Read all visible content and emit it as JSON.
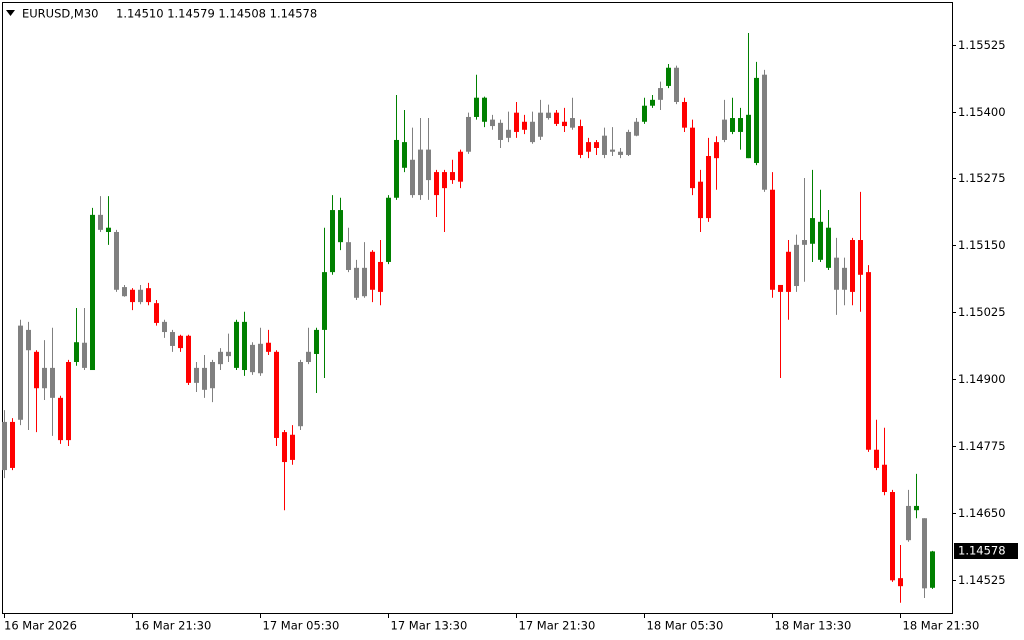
{
  "header": {
    "symbol": "EURUSD,M30",
    "ohlc": "1.14510 1.14579 1.14508 1.14578"
  },
  "chart_data": {
    "type": "candlestick",
    "categories": [
      "16 Mar 2026",
      null,
      null,
      null,
      null,
      null,
      null,
      null,
      null,
      null,
      null,
      null,
      null,
      null,
      null,
      null,
      "16 Mar 21:30",
      null,
      null,
      null,
      null,
      null,
      null,
      null,
      null,
      null,
      null,
      null,
      null,
      null,
      null,
      null,
      "17 Mar 05:30",
      null,
      null,
      null,
      null,
      null,
      null,
      null,
      null,
      null,
      null,
      null,
      null,
      null,
      null,
      null,
      "17 Mar 13:30",
      null,
      null,
      null,
      null,
      null,
      null,
      null,
      null,
      null,
      null,
      null,
      null,
      null,
      null,
      null,
      "17 Mar 21:30",
      null,
      null,
      null,
      null,
      null,
      null,
      null,
      null,
      null,
      null,
      null,
      null,
      null,
      null,
      null,
      "18 Mar 05:30",
      null,
      null,
      null,
      null,
      null,
      null,
      null,
      null,
      null,
      null,
      null,
      null,
      null,
      null,
      null,
      "18 Mar 13:30",
      null,
      null,
      null,
      null,
      null,
      null,
      null,
      null,
      null,
      null,
      null,
      null,
      null,
      null,
      null,
      "18 Mar 21:30",
      null,
      null,
      null,
      null
    ],
    "open": [
      1.1473,
      1.1482,
      1.14824,
      1.14954,
      1.14951,
      1.14883,
      1.14921,
      1.14865,
      1.14932,
      1.14932,
      1.14968,
      1.14917,
      1.15207,
      1.15175,
      1.15175,
      1.15072,
      1.15067,
      1.15044,
      1.1507,
      1.15042,
      1.15007,
      1.14988,
      1.14981,
      1.14981,
      1.14893,
      1.14921,
      1.14883,
      1.14928,
      1.14951,
      1.14921,
      1.14917,
      1.14964,
      1.14911,
      1.14968,
      1.14951,
      1.14801,
      1.14796,
      1.14812,
      1.14932,
      1.14947,
      1.14992,
      1.151,
      1.15156,
      1.15156,
      1.15052,
      1.15108,
      1.15138,
      1.15119,
      1.15119,
      1.15239,
      1.15295,
      1.1531,
      1.15244,
      1.15329,
      1.15287,
      1.15287,
      1.15287,
      1.15325,
      1.15325,
      1.1539,
      1.15381,
      1.15385,
      1.15379,
      1.15351,
      1.15398,
      1.15381,
      1.15381,
      1.15353,
      1.15398,
      1.15398,
      1.15381,
      1.1537,
      1.15373,
      1.15343,
      1.15343,
      1.15319,
      1.15329,
      1.15325,
      1.15319,
      1.15355,
      1.15381,
      1.15411,
      1.15422,
      1.15448,
      1.15482,
      1.15418,
      1.1537,
      1.15269,
      1.15317,
      1.15343,
      1.15347,
      1.15362,
      1.15362,
      1.15313,
      1.15304,
      1.15469,
      1.15254,
      1.15076,
      1.15138,
      1.15074,
      1.15151,
      1.15153,
      1.15123,
      1.15108,
      1.15127,
      1.15067,
      1.1516,
      1.1516,
      1.151,
      1.14768,
      1.1474,
      1.14689,
      1.14528,
      1.14599,
      1.14655,
      1.1464,
      1.1451
    ],
    "high": [
      1.14842,
      1.14827,
      1.15011,
      1.15007,
      1.14954,
      1.14973,
      1.14996,
      1.14869,
      1.14936,
      1.15033,
      1.15033,
      1.1522,
      1.15242,
      1.15242,
      1.15179,
      1.15076,
      1.1507,
      1.15076,
      1.1508,
      1.15048,
      1.15011,
      1.14992,
      1.14983,
      1.14983,
      1.14932,
      1.14945,
      1.14936,
      1.14958,
      1.14985,
      1.15011,
      1.15026,
      1.14969,
      1.14996,
      1.14992,
      1.14954,
      1.14805,
      1.14814,
      1.14936,
      1.14996,
      1.14996,
      1.15183,
      1.15244,
      1.15239,
      1.15183,
      1.15123,
      1.15156,
      1.15141,
      1.1516,
      1.15244,
      1.15431,
      1.15403,
      1.1537,
      1.15388,
      1.15388,
      1.15291,
      1.15291,
      1.1531,
      1.15329,
      1.15398,
      1.15469,
      1.15428,
      1.15394,
      1.15385,
      1.154,
      1.15418,
      1.15394,
      1.154,
      1.15422,
      1.15413,
      1.15403,
      1.15407,
      1.15426,
      1.15385,
      1.15351,
      1.15347,
      1.1537,
      1.15371,
      1.15332,
      1.15366,
      1.15388,
      1.15426,
      1.15431,
      1.15456,
      1.15489,
      1.15486,
      1.15426,
      1.15385,
      1.15291,
      1.15351,
      1.15354,
      1.15422,
      1.15426,
      1.15407,
      1.15547,
      1.15493,
      1.15478,
      1.15287,
      1.15076,
      1.1516,
      1.1517,
      1.15276,
      1.15291,
      1.15254,
      1.15216,
      1.15164,
      1.15127,
      1.15164,
      1.1525,
      1.15113,
      1.14824,
      1.14809,
      1.14693,
      1.1459,
      1.14693,
      1.14723,
      1.1464,
      1.14579
    ],
    "low": [
      1.14715,
      1.1473,
      1.14814,
      1.14805,
      1.14801,
      1.14861,
      1.14794,
      1.14779,
      1.14775,
      1.14925,
      1.14917,
      1.14917,
      1.15175,
      1.15151,
      1.15063,
      1.15054,
      1.15029,
      1.1504,
      1.15038,
      1.15,
      1.14977,
      1.14951,
      1.14951,
      1.14889,
      1.14876,
      1.14865,
      1.14857,
      1.14917,
      1.14932,
      1.14917,
      1.14906,
      1.14908,
      1.14906,
      1.14945,
      1.14775,
      1.14655,
      1.1474,
      1.14805,
      1.14928,
      1.14874,
      1.14902,
      1.15095,
      1.15141,
      1.151,
      1.15048,
      1.15052,
      1.15044,
      1.15038,
      1.15115,
      1.15235,
      1.15287,
      1.15239,
      1.15235,
      1.15235,
      1.15203,
      1.15175,
      1.15265,
      1.15257,
      1.15321,
      1.15385,
      1.15371,
      1.15366,
      1.15332,
      1.15343,
      1.15351,
      1.15358,
      1.1534,
      1.15347,
      1.15385,
      1.15373,
      1.15362,
      1.15366,
      1.15313,
      1.15313,
      1.15319,
      1.15313,
      1.15317,
      1.15313,
      1.15317,
      1.15354,
      1.15377,
      1.15407,
      1.15403,
      1.15444,
      1.15414,
      1.15362,
      1.15244,
      1.15175,
      1.15194,
      1.15254,
      1.15343,
      1.15358,
      1.15329,
      1.15313,
      1.153,
      1.1525,
      1.15052,
      1.14902,
      1.15011,
      1.15063,
      1.15082,
      1.15119,
      1.15119,
      1.15104,
      1.1502,
      1.15038,
      1.15038,
      1.15026,
      1.14764,
      1.1473,
      1.14683,
      1.14521,
      1.14482,
      1.14596,
      1.1464,
      1.14491,
      1.14508
    ],
    "close": [
      1.1482,
      1.14734,
      1.15,
      1.14992,
      1.14883,
      1.14921,
      1.14865,
      1.14786,
      1.14786,
      1.14969,
      1.14921,
      1.15207,
      1.15179,
      1.15183,
      1.15067,
      1.15055,
      1.15044,
      1.15067,
      1.15044,
      1.15005,
      1.14988,
      1.14962,
      1.14958,
      1.14893,
      1.14921,
      1.1488,
      1.14932,
      1.14951,
      1.14943,
      1.15007,
      1.15007,
      1.14913,
      1.14966,
      1.14951,
      1.1479,
      1.14745,
      1.14749,
      1.14932,
      1.14951,
      1.14992,
      1.151,
      1.15216,
      1.15216,
      1.15104,
      1.15108,
      1.15055,
      1.15067,
      1.15063,
      1.15239,
      1.15347,
      1.15343,
      1.15244,
      1.15329,
      1.15272,
      1.15244,
      1.15257,
      1.15272,
      1.15269,
      1.1539,
      1.15426,
      1.15426,
      1.15373,
      1.15347,
      1.15366,
      1.15362,
      1.15366,
      1.15343,
      1.15398,
      1.15388,
      1.15377,
      1.15373,
      1.15388,
      1.15319,
      1.15325,
      1.15332,
      1.15355,
      1.15325,
      1.15319,
      1.15362,
      1.15381,
      1.15411,
      1.15422,
      1.15444,
      1.15482,
      1.15418,
      1.1537,
      1.15257,
      1.15201,
      1.15201,
      1.15313,
      1.15385,
      1.15388,
      1.15388,
      1.15394,
      1.15463,
      1.15254,
      1.15067,
      1.15063,
      1.15063,
      1.15151,
      1.1516,
      1.15201,
      1.15194,
      1.15183,
      1.15067,
      1.15108,
      1.15063,
      1.15095,
      1.14768,
      1.14734,
      1.14689,
      1.14524,
      1.14513,
      1.14663,
      1.14663,
      1.14509,
      1.14578
    ],
    "colors": [
      "#808080",
      "#ff0000",
      "#808080",
      "#808080",
      "#ff0000",
      "#808080",
      "#808080",
      "#ff0000",
      "#ff0000",
      "#008000",
      "#808080",
      "#008000",
      "#808080",
      "#008000",
      "#808080",
      "#808080",
      "#ff0000",
      "#808080",
      "#ff0000",
      "#ff0000",
      "#808080",
      "#808080",
      "#ff0000",
      "#ff0000",
      "#808080",
      "#808080",
      "#808080",
      "#808080",
      "#808080",
      "#008000",
      "#008000",
      "#808080",
      "#808080",
      "#ff0000",
      "#ff0000",
      "#ff0000",
      "#ff0000",
      "#808080",
      "#808080",
      "#008000",
      "#008000",
      "#008000",
      "#008000",
      "#808080",
      "#808080",
      "#808080",
      "#ff0000",
      "#ff0000",
      "#008000",
      "#008000",
      "#008000",
      "#808080",
      "#808080",
      "#808080",
      "#ff0000",
      "#ff0000",
      "#ff0000",
      "#ff0000",
      "#808080",
      "#008000",
      "#008000",
      "#808080",
      "#808080",
      "#808080",
      "#ff0000",
      "#ff0000",
      "#808080",
      "#808080",
      "#808080",
      "#ff0000",
      "#ff0000",
      "#808080",
      "#ff0000",
      "#ff0000",
      "#ff0000",
      "#808080",
      "#808080",
      "#808080",
      "#808080",
      "#808080",
      "#008000",
      "#008000",
      "#808080",
      "#008000",
      "#808080",
      "#ff0000",
      "#ff0000",
      "#ff0000",
      "#ff0000",
      "#ff0000",
      "#808080",
      "#008000",
      "#008000",
      "#008000",
      "#008000",
      "#808080",
      "#ff0000",
      "#ff0000",
      "#ff0000",
      "#808080",
      "#808080",
      "#008000",
      "#008000",
      "#008000",
      "#808080",
      "#808080",
      "#ff0000",
      "#ff0000",
      "#ff0000",
      "#ff0000",
      "#ff0000",
      "#ff0000",
      "#ff0000",
      "#808080",
      "#008000",
      "#808080",
      "#008000"
    ],
    "ylim": [
      1.14461,
      1.15603
    ],
    "yticks": [
      1.15525,
      {
        "value": 1.154,
        "label": "1.15400"
      },
      1.15275,
      {
        "value": 1.1515,
        "label": "1.15150"
      },
      1.15025,
      {
        "value": 1.149,
        "label": "1.14900"
      },
      1.14775,
      {
        "value": 1.1465,
        "label": "1.14650"
      },
      1.14525
    ],
    "last_price": {
      "value": 1.14578,
      "label": "1.14578"
    },
    "grid": false
  }
}
